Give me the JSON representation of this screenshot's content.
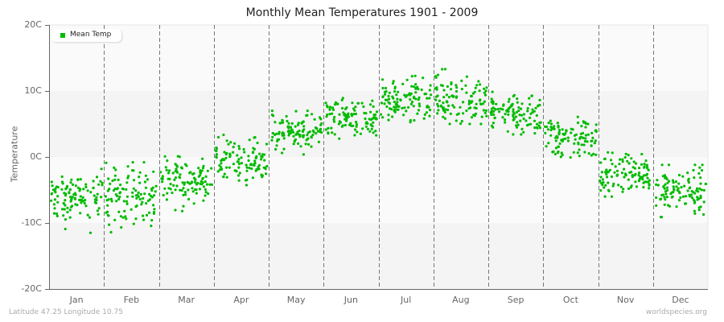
{
  "title": "Monthly Mean Temperatures 1901 - 2009",
  "y_axis_label": "Temperature",
  "footer": {
    "location": "Latitude 47.25 Longitude 10.75",
    "source": "worldspecies.org"
  },
  "legend": {
    "label": "Mean Temp",
    "color": "#00bb00"
  },
  "colors": {
    "points": "#00bb00",
    "band_light": "#fafafa",
    "band_dark": "#f4f4f4",
    "divider": "#777777",
    "axis": "#666666"
  },
  "chart_data": {
    "type": "scatter",
    "title": "Monthly Mean Temperatures 1901 - 2009",
    "xlabel": "",
    "ylabel": "Temperature",
    "ylim": [
      -20,
      20
    ],
    "y_ticks": [
      "20C",
      "10C",
      "0C",
      "-10C",
      "-20C"
    ],
    "y_tick_values": [
      20,
      10,
      0,
      -10,
      -20
    ],
    "categories": [
      "Jan",
      "Feb",
      "Mar",
      "Apr",
      "May",
      "Jun",
      "Jul",
      "Aug",
      "Sep",
      "Oct",
      "Nov",
      "Dec"
    ],
    "legend_position": "top-left",
    "grid": "horizontal bands every 10C, dashed vertical month dividers",
    "series": [
      {
        "name": "Mean Temp",
        "points_per_month": 109,
        "monthly_mean": [
          -6.2,
          -6.0,
          -3.5,
          -0.5,
          3.5,
          6.0,
          8.5,
          8.8,
          6.5,
          3.0,
          -2.5,
          -5.0
        ],
        "monthly_min": [
          -12.2,
          -13.3,
          -8.2,
          -5.0,
          -1.2,
          1.8,
          4.8,
          5.0,
          2.0,
          -1.5,
          -6.0,
          -10.8
        ],
        "monthly_max": [
          -1.8,
          -0.8,
          0.8,
          3.5,
          7.0,
          9.8,
          13.2,
          13.3,
          10.0,
          7.0,
          1.5,
          -1.2
        ]
      }
    ]
  }
}
